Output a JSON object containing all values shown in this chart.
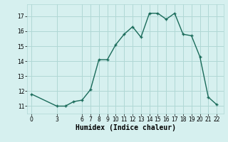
{
  "xlabel": "Humidex (Indice chaleur)",
  "x": [
    0,
    3,
    4,
    5,
    6,
    7,
    8,
    9,
    10,
    11,
    12,
    13,
    14,
    15,
    16,
    17,
    18,
    19,
    20,
    21,
    22
  ],
  "y": [
    11.8,
    11.0,
    11.0,
    11.3,
    11.4,
    12.1,
    14.1,
    14.1,
    15.1,
    15.8,
    16.3,
    15.6,
    17.2,
    17.2,
    16.8,
    17.2,
    15.8,
    15.7,
    14.3,
    11.6,
    11.1
  ],
  "line_color": "#1a6b5a",
  "marker": "+",
  "bg_color": "#d6f0ef",
  "grid_color": "#b0d8d5",
  "ylim": [
    10.5,
    17.8
  ],
  "yticks": [
    11,
    12,
    13,
    14,
    15,
    16,
    17
  ],
  "xticks": [
    0,
    3,
    6,
    7,
    8,
    9,
    10,
    11,
    12,
    13,
    14,
    15,
    16,
    17,
    18,
    19,
    20,
    21,
    22
  ],
  "tick_fontsize": 5.5,
  "xlabel_fontsize": 7,
  "line_width": 1.0,
  "marker_size": 3.5
}
